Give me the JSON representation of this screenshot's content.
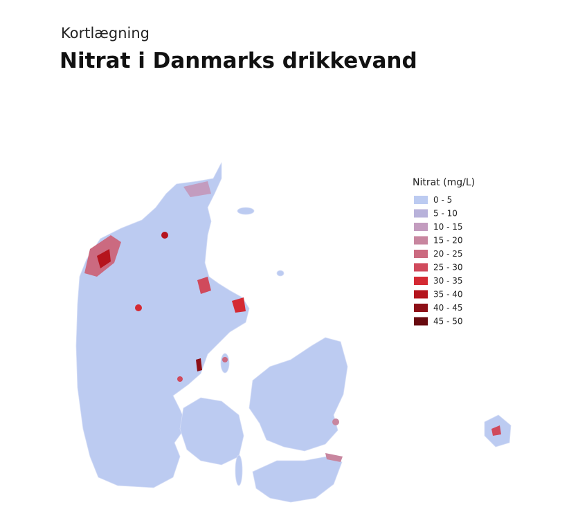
{
  "header": {
    "kicker": "Kortlægning",
    "title": "Nitrat i Danmarks drikkevand"
  },
  "legend": {
    "title": "Nitrat (mg/L)",
    "items": [
      {
        "label": "0 - 5",
        "color": "#bccbf1"
      },
      {
        "label": "5 - 10",
        "color": "#b8b2da"
      },
      {
        "label": "10 - 15",
        "color": "#c39cbf"
      },
      {
        "label": "15 - 20",
        "color": "#c8869f"
      },
      {
        "label": "20 - 25",
        "color": "#cb6a80"
      },
      {
        "label": "25 - 30",
        "color": "#d04a5c"
      },
      {
        "label": "30 - 35",
        "color": "#d42a33"
      },
      {
        "label": "35 - 40",
        "color": "#b5141d"
      },
      {
        "label": "40 - 45",
        "color": "#8d0f16"
      },
      {
        "label": "45 - 50",
        "color": "#680a0f"
      }
    ]
  }
}
